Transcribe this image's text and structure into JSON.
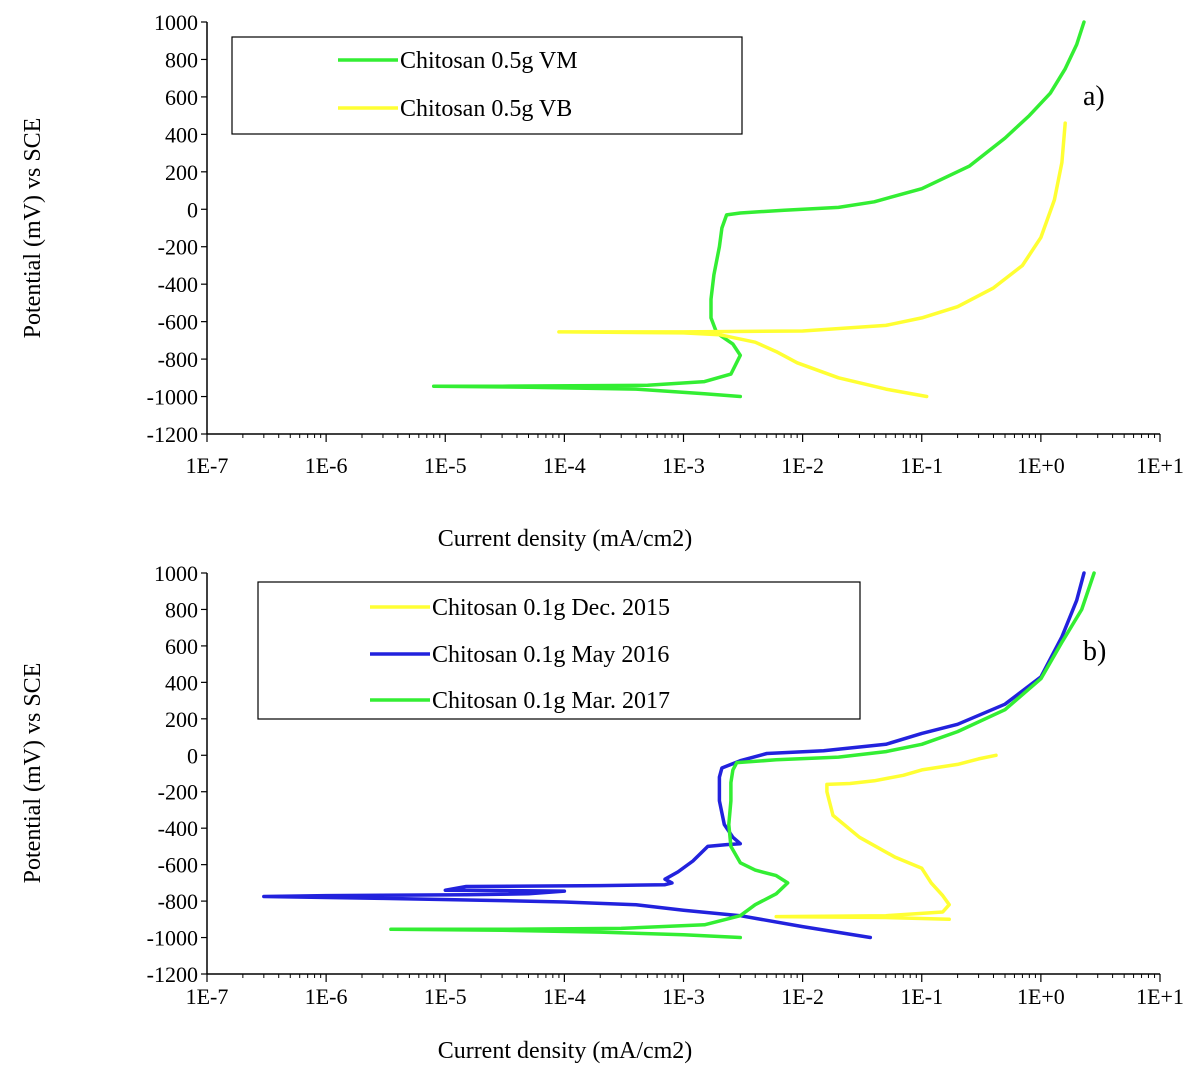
{
  "chart_data": [
    {
      "type": "line",
      "panel_label": "a)",
      "xlabel": "Current density (mA/cm2)",
      "ylabel": "Potential (mV) vs SCE",
      "x_scale": "log",
      "xlim": [
        1e-07,
        10
      ],
      "ylim": [
        -1200,
        1000
      ],
      "x_ticks": [
        "1E-7",
        "1E-6",
        "1E-5",
        "1E-4",
        "1E-3",
        "1E-2",
        "1E-1",
        "1E+0",
        "1E+1"
      ],
      "y_ticks": [
        "1000",
        "800",
        "600",
        "400",
        "200",
        "0",
        "-200",
        "-400",
        "-600",
        "-800",
        "-1000",
        "-1200"
      ],
      "grid": false,
      "legend_position": "top-left",
      "series": [
        {
          "name": "Chitosan 0.5g VM",
          "color": "#33ee33",
          "points": [
            [
              0.003,
              -1000
            ],
            [
              0.0015,
              -985
            ],
            [
              0.0004,
              -960
            ],
            [
              5e-05,
              -950
            ],
            [
              8e-06,
              -945
            ],
            [
              3e-05,
              -945
            ],
            [
              0.0005,
              -940
            ],
            [
              0.0015,
              -920
            ],
            [
              0.0025,
              -880
            ],
            [
              0.003,
              -780
            ],
            [
              0.0026,
              -720
            ],
            [
              0.0019,
              -660
            ],
            [
              0.0017,
              -580
            ],
            [
              0.0017,
              -480
            ],
            [
              0.0018,
              -350
            ],
            [
              0.002,
              -200
            ],
            [
              0.0021,
              -100
            ],
            [
              0.0023,
              -30
            ],
            [
              0.003,
              -20
            ],
            [
              0.007,
              -5
            ],
            [
              0.02,
              10
            ],
            [
              0.04,
              40
            ],
            [
              0.1,
              110
            ],
            [
              0.25,
              230
            ],
            [
              0.5,
              380
            ],
            [
              0.8,
              500
            ],
            [
              1.2,
              620
            ],
            [
              1.6,
              750
            ],
            [
              2.0,
              880
            ],
            [
              2.3,
              1000
            ]
          ]
        },
        {
          "name": "Chitosan 0.5g VB",
          "color": "#ffff33",
          "points": [
            [
              0.11,
              -1000
            ],
            [
              0.05,
              -960
            ],
            [
              0.02,
              -900
            ],
            [
              0.009,
              -820
            ],
            [
              0.006,
              -760
            ],
            [
              0.004,
              -710
            ],
            [
              0.002,
              -670
            ],
            [
              0.001,
              -660
            ],
            [
              0.0001,
              -655
            ],
            [
              9e-05,
              -655
            ],
            [
              0.001,
              -655
            ],
            [
              0.01,
              -650
            ],
            [
              0.05,
              -620
            ],
            [
              0.1,
              -580
            ],
            [
              0.2,
              -520
            ],
            [
              0.4,
              -420
            ],
            [
              0.7,
              -300
            ],
            [
              1.0,
              -150
            ],
            [
              1.3,
              50
            ],
            [
              1.5,
              250
            ],
            [
              1.6,
              460
            ]
          ]
        }
      ]
    },
    {
      "type": "line",
      "panel_label": "b)",
      "xlabel": "Current density (mA/cm2)",
      "ylabel": "Potential (mV) vs SCE",
      "x_scale": "log",
      "xlim": [
        1e-07,
        10
      ],
      "ylim": [
        -1200,
        1000
      ],
      "x_ticks": [
        "1E-7",
        "1E-6",
        "1E-5",
        "1E-4",
        "1E-3",
        "1E-2",
        "1E-1",
        "1E+0",
        "1E+1"
      ],
      "y_ticks": [
        "1000",
        "800",
        "600",
        "400",
        "200",
        "0",
        "-200",
        "-400",
        "-600",
        "-800",
        "-1000",
        "-1200"
      ],
      "grid": false,
      "legend_position": "top-left",
      "series": [
        {
          "name": "Chitosan 0.1g Dec. 2015",
          "color": "#ffff33",
          "points": [
            [
              0.17,
              -900
            ],
            [
              0.05,
              -890
            ],
            [
              0.006,
              -885
            ],
            [
              0.05,
              -880
            ],
            [
              0.15,
              -860
            ],
            [
              0.17,
              -820
            ],
            [
              0.15,
              -770
            ],
            [
              0.12,
              -700
            ],
            [
              0.1,
              -620
            ],
            [
              0.06,
              -560
            ],
            [
              0.03,
              -450
            ],
            [
              0.018,
              -330
            ],
            [
              0.016,
              -200
            ],
            [
              0.016,
              -160
            ],
            [
              0.025,
              -155
            ],
            [
              0.04,
              -140
            ],
            [
              0.07,
              -110
            ],
            [
              0.1,
              -80
            ],
            [
              0.2,
              -50
            ],
            [
              0.3,
              -20
            ],
            [
              0.42,
              0
            ]
          ]
        },
        {
          "name": "Chitosan 0.1g May 2016",
          "color": "#2222dd",
          "points": [
            [
              0.037,
              -1000
            ],
            [
              0.01,
              -940
            ],
            [
              0.003,
              -880
            ],
            [
              0.001,
              -850
            ],
            [
              0.0004,
              -820
            ],
            [
              0.0001,
              -805
            ],
            [
              2e-05,
              -795
            ],
            [
              3e-06,
              -785
            ],
            [
              3e-07,
              -775
            ],
            [
              1e-06,
              -770
            ],
            [
              1.5e-05,
              -765
            ],
            [
              5e-05,
              -760
            ],
            [
              0.0001,
              -745
            ],
            [
              1e-05,
              -740
            ],
            [
              1.5e-05,
              -720
            ],
            [
              0.0002,
              -715
            ],
            [
              0.0007,
              -710
            ],
            [
              0.0008,
              -700
            ],
            [
              0.0007,
              -680
            ],
            [
              0.0009,
              -640
            ],
            [
              0.0012,
              -580
            ],
            [
              0.0016,
              -500
            ],
            [
              0.0023,
              -490
            ],
            [
              0.003,
              -485
            ],
            [
              0.0026,
              -450
            ],
            [
              0.0022,
              -380
            ],
            [
              0.002,
              -250
            ],
            [
              0.002,
              -120
            ],
            [
              0.0021,
              -70
            ],
            [
              0.003,
              -30
            ],
            [
              0.005,
              10
            ],
            [
              0.015,
              25
            ],
            [
              0.05,
              60
            ],
            [
              0.1,
              120
            ],
            [
              0.2,
              170
            ],
            [
              0.5,
              280
            ],
            [
              1.0,
              430
            ],
            [
              1.5,
              650
            ],
            [
              2.0,
              850
            ],
            [
              2.3,
              1000
            ]
          ]
        },
        {
          "name": "Chitosan 0.1g Mar. 2017",
          "color": "#33ee33",
          "points": [
            [
              0.003,
              -1000
            ],
            [
              0.001,
              -985
            ],
            [
              0.0002,
              -970
            ],
            [
              3e-05,
              -960
            ],
            [
              3.5e-06,
              -955
            ],
            [
              3e-05,
              -955
            ],
            [
              0.0003,
              -950
            ],
            [
              0.0015,
              -930
            ],
            [
              0.003,
              -880
            ],
            [
              0.004,
              -820
            ],
            [
              0.006,
              -760
            ],
            [
              0.0075,
              -700
            ],
            [
              0.006,
              -660
            ],
            [
              0.004,
              -630
            ],
            [
              0.003,
              -590
            ],
            [
              0.0025,
              -500
            ],
            [
              0.0024,
              -380
            ],
            [
              0.0025,
              -250
            ],
            [
              0.0025,
              -150
            ],
            [
              0.0026,
              -80
            ],
            [
              0.0028,
              -40
            ],
            [
              0.006,
              -25
            ],
            [
              0.02,
              -10
            ],
            [
              0.05,
              20
            ],
            [
              0.1,
              60
            ],
            [
              0.2,
              130
            ],
            [
              0.5,
              250
            ],
            [
              1.0,
              420
            ],
            [
              1.5,
              620
            ],
            [
              2.2,
              800
            ],
            [
              2.8,
              1000
            ]
          ]
        }
      ]
    }
  ]
}
